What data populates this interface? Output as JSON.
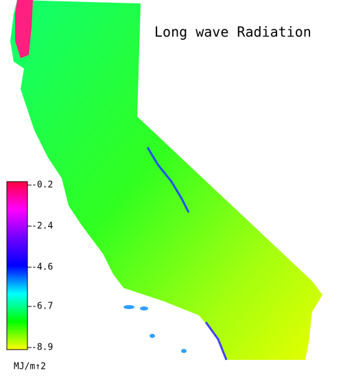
{
  "title": "Long wave Radiation",
  "legend": {
    "unit": "MJ/m↑2",
    "range": [
      -0.2,
      -8.9
    ],
    "ticks": [
      -0.2,
      -2.4,
      -4.6,
      -6.7,
      -8.9
    ],
    "colors": [
      "#ff0040",
      "#ff00ff",
      "#7000ff",
      "#0000ff",
      "#00ffff",
      "#00ff00",
      "#ffff00"
    ]
  }
}
